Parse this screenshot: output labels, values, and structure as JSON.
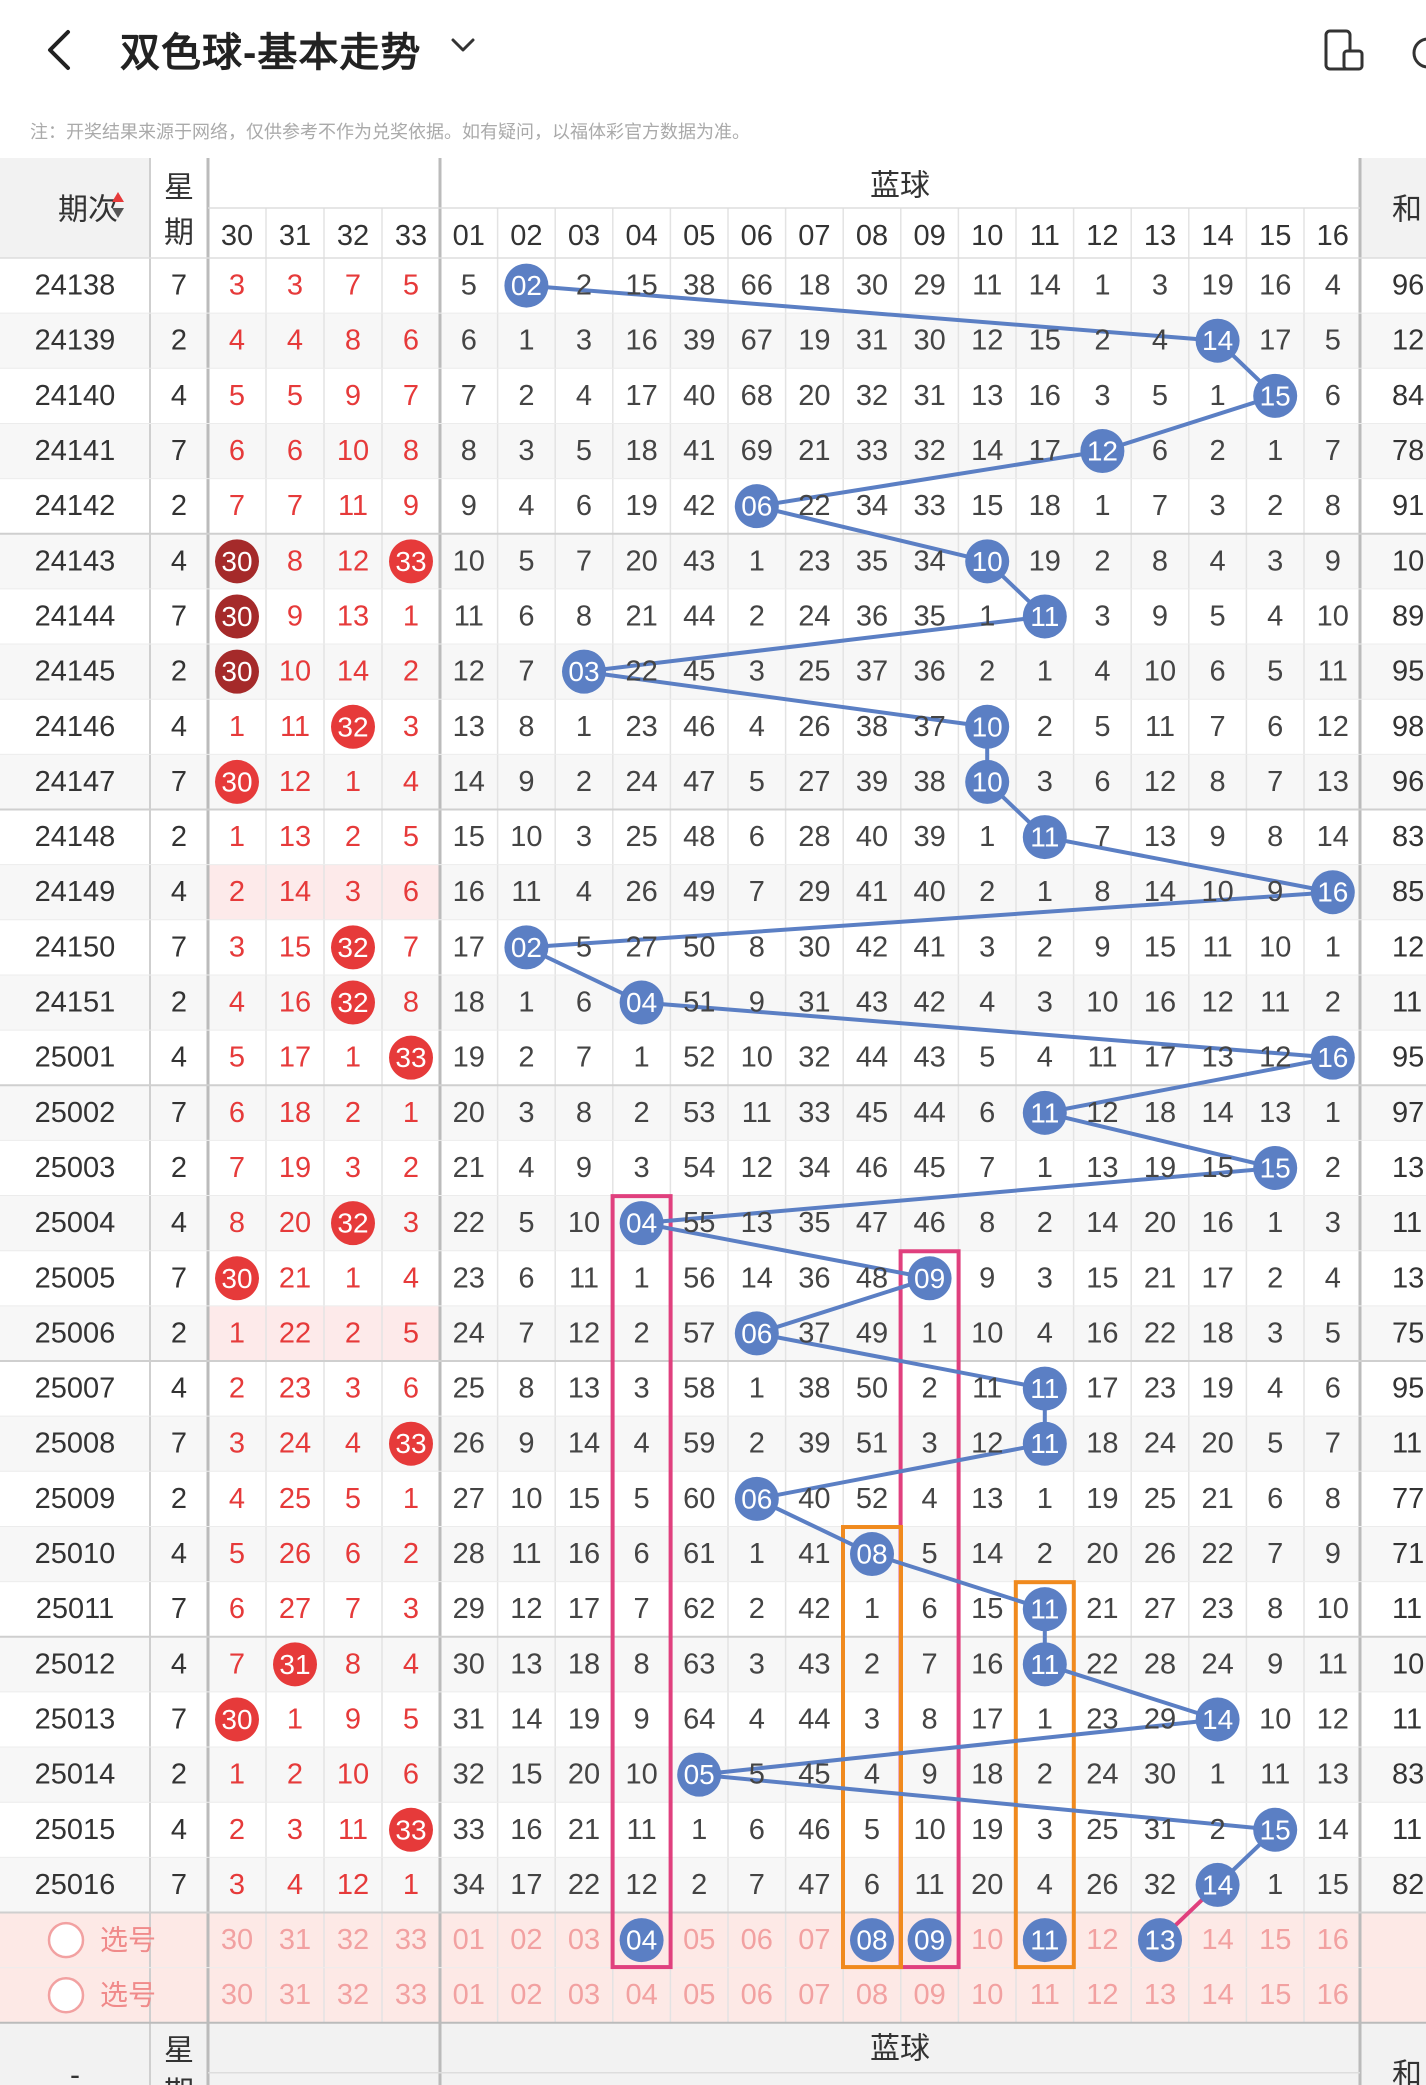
{
  "header": {
    "back_icon": "chevron-left-icon",
    "title": "双色球-基本走势",
    "dropdown_icon": "chevron-down-icon",
    "rotate_icon": "rotate-screen-icon"
  },
  "notice": "注：开奖结果来源于网络，仅供参考不作为兑奖依据。如有疑问，以福体彩官方数据为准。",
  "table": {
    "issue_header": "期次",
    "week_header": "星期",
    "blue_group_header": "蓝球",
    "sum_header_partial": "和",
    "red_cols": [
      "30",
      "31",
      "32",
      "33"
    ],
    "blue_cols": [
      "01",
      "02",
      "03",
      "04",
      "05",
      "06",
      "07",
      "08",
      "09",
      "10",
      "11",
      "12",
      "13",
      "14",
      "15",
      "16"
    ],
    "select_label": "选号",
    "footer_issue": "-",
    "colors": {
      "red": "#e63a3a",
      "dark_red": "#a52a2a",
      "blue": "#5b7fc4",
      "orange": "#f08a1e",
      "pink": "#e0407e",
      "header_bg": "#f2f2f2",
      "grid": "#dcdcdc"
    },
    "rows": [
      {
        "issue": "24138",
        "week": "7",
        "red": [
          "3",
          "3",
          "7",
          "5"
        ],
        "blue": [
          "5",
          "02",
          "2",
          "15",
          "38",
          "66",
          "18",
          "30",
          "29",
          "11",
          "14",
          "1",
          "3",
          "19",
          "16",
          "4"
        ],
        "sum": "96"
      },
      {
        "issue": "24139",
        "week": "2",
        "red": [
          "4",
          "4",
          "8",
          "6"
        ],
        "blue": [
          "6",
          "1",
          "3",
          "16",
          "39",
          "67",
          "19",
          "31",
          "30",
          "12",
          "15",
          "2",
          "4",
          "14",
          "17",
          "5"
        ],
        "sum": "12"
      },
      {
        "issue": "24140",
        "week": "4",
        "red": [
          "5",
          "5",
          "9",
          "7"
        ],
        "blue": [
          "7",
          "2",
          "4",
          "17",
          "40",
          "68",
          "20",
          "32",
          "31",
          "13",
          "16",
          "3",
          "5",
          "1",
          "15",
          "6"
        ],
        "sum": "84"
      },
      {
        "issue": "24141",
        "week": "7",
        "red": [
          "6",
          "6",
          "10",
          "8"
        ],
        "blue": [
          "8",
          "3",
          "5",
          "18",
          "41",
          "69",
          "21",
          "33",
          "32",
          "14",
          "17",
          "12",
          "6",
          "2",
          "1",
          "7"
        ],
        "sum": "78"
      },
      {
        "issue": "24142",
        "week": "2",
        "red": [
          "7",
          "7",
          "11",
          "9"
        ],
        "blue": [
          "9",
          "4",
          "6",
          "19",
          "42",
          "06",
          "22",
          "34",
          "33",
          "15",
          "18",
          "1",
          "7",
          "3",
          "2",
          "8"
        ],
        "sum": "91"
      },
      {
        "issue": "24143",
        "week": "4",
        "red": [
          "30",
          "8",
          "12",
          "33"
        ],
        "blue": [
          "10",
          "5",
          "7",
          "20",
          "43",
          "1",
          "23",
          "35",
          "34",
          "10",
          "19",
          "2",
          "8",
          "4",
          "3",
          "9"
        ],
        "sum": "10"
      },
      {
        "issue": "24144",
        "week": "7",
        "red": [
          "30",
          "9",
          "13",
          "1"
        ],
        "blue": [
          "11",
          "6",
          "8",
          "21",
          "44",
          "2",
          "24",
          "36",
          "35",
          "1",
          "11",
          "3",
          "9",
          "5",
          "4",
          "10"
        ],
        "sum": "89"
      },
      {
        "issue": "24145",
        "week": "2",
        "red": [
          "30",
          "10",
          "14",
          "2"
        ],
        "blue": [
          "12",
          "7",
          "03",
          "22",
          "45",
          "3",
          "25",
          "37",
          "36",
          "2",
          "1",
          "4",
          "10",
          "6",
          "5",
          "11"
        ],
        "sum": "95"
      },
      {
        "issue": "24146",
        "week": "4",
        "red": [
          "1",
          "11",
          "32",
          "3"
        ],
        "blue": [
          "13",
          "8",
          "1",
          "23",
          "46",
          "4",
          "26",
          "38",
          "37",
          "10",
          "2",
          "5",
          "11",
          "7",
          "6",
          "12"
        ],
        "sum": "98"
      },
      {
        "issue": "24147",
        "week": "7",
        "red": [
          "30",
          "12",
          "1",
          "4"
        ],
        "blue": [
          "14",
          "9",
          "2",
          "24",
          "47",
          "5",
          "27",
          "39",
          "38",
          "10",
          "3",
          "6",
          "12",
          "8",
          "7",
          "13"
        ],
        "sum": "96"
      },
      {
        "issue": "24148",
        "week": "2",
        "red": [
          "1",
          "13",
          "2",
          "5"
        ],
        "blue": [
          "15",
          "10",
          "3",
          "25",
          "48",
          "6",
          "28",
          "40",
          "39",
          "1",
          "11",
          "7",
          "13",
          "9",
          "8",
          "14"
        ],
        "sum": "83"
      },
      {
        "issue": "24149",
        "week": "4",
        "red": [
          "2",
          "14",
          "3",
          "6"
        ],
        "blue": [
          "16",
          "11",
          "4",
          "26",
          "49",
          "7",
          "29",
          "41",
          "40",
          "2",
          "1",
          "8",
          "14",
          "10",
          "9",
          "16"
        ],
        "sum": "85"
      },
      {
        "issue": "24150",
        "week": "7",
        "red": [
          "3",
          "15",
          "32",
          "7"
        ],
        "blue": [
          "17",
          "02",
          "5",
          "27",
          "50",
          "8",
          "30",
          "42",
          "41",
          "3",
          "2",
          "9",
          "15",
          "11",
          "10",
          "1"
        ],
        "sum": "12"
      },
      {
        "issue": "24151",
        "week": "2",
        "red": [
          "4",
          "16",
          "32",
          "8"
        ],
        "blue": [
          "18",
          "1",
          "6",
          "04",
          "51",
          "9",
          "31",
          "43",
          "42",
          "4",
          "3",
          "10",
          "16",
          "12",
          "11",
          "2"
        ],
        "sum": "11"
      },
      {
        "issue": "25001",
        "week": "4",
        "red": [
          "5",
          "17",
          "1",
          "33"
        ],
        "blue": [
          "19",
          "2",
          "7",
          "1",
          "52",
          "10",
          "32",
          "44",
          "43",
          "5",
          "4",
          "11",
          "17",
          "13",
          "12",
          "16"
        ],
        "sum": "95"
      },
      {
        "issue": "25002",
        "week": "7",
        "red": [
          "6",
          "18",
          "2",
          "1"
        ],
        "blue": [
          "20",
          "3",
          "8",
          "2",
          "53",
          "11",
          "33",
          "45",
          "44",
          "6",
          "11",
          "12",
          "18",
          "14",
          "13",
          "1"
        ],
        "sum": "97"
      },
      {
        "issue": "25003",
        "week": "2",
        "red": [
          "7",
          "19",
          "3",
          "2"
        ],
        "blue": [
          "21",
          "4",
          "9",
          "3",
          "54",
          "12",
          "34",
          "46",
          "45",
          "7",
          "1",
          "13",
          "19",
          "15",
          "15",
          "2"
        ],
        "sum": "13"
      },
      {
        "issue": "25004",
        "week": "4",
        "red": [
          "8",
          "20",
          "32",
          "3"
        ],
        "blue": [
          "22",
          "5",
          "10",
          "04",
          "55",
          "13",
          "35",
          "47",
          "46",
          "8",
          "2",
          "14",
          "20",
          "16",
          "1",
          "3"
        ],
        "sum": "11"
      },
      {
        "issue": "25005",
        "week": "7",
        "red": [
          "30",
          "21",
          "1",
          "4"
        ],
        "blue": [
          "23",
          "6",
          "11",
          "1",
          "56",
          "14",
          "36",
          "48",
          "09",
          "9",
          "3",
          "15",
          "21",
          "17",
          "2",
          "4"
        ],
        "sum": "13"
      },
      {
        "issue": "25006",
        "week": "2",
        "red": [
          "1",
          "22",
          "2",
          "5"
        ],
        "blue": [
          "24",
          "7",
          "12",
          "2",
          "57",
          "06",
          "37",
          "49",
          "1",
          "10",
          "4",
          "16",
          "22",
          "18",
          "3",
          "5"
        ],
        "sum": "75"
      },
      {
        "issue": "25007",
        "week": "4",
        "red": [
          "2",
          "23",
          "3",
          "6"
        ],
        "blue": [
          "25",
          "8",
          "13",
          "3",
          "58",
          "1",
          "38",
          "50",
          "2",
          "11",
          "11",
          "17",
          "23",
          "19",
          "4",
          "6"
        ],
        "sum": "95"
      },
      {
        "issue": "25008",
        "week": "7",
        "red": [
          "3",
          "24",
          "4",
          "33"
        ],
        "blue": [
          "26",
          "9",
          "14",
          "4",
          "59",
          "2",
          "39",
          "51",
          "3",
          "12",
          "11",
          "18",
          "24",
          "20",
          "5",
          "7"
        ],
        "sum": "11"
      },
      {
        "issue": "25009",
        "week": "2",
        "red": [
          "4",
          "25",
          "5",
          "1"
        ],
        "blue": [
          "27",
          "10",
          "15",
          "5",
          "60",
          "06",
          "40",
          "52",
          "4",
          "13",
          "1",
          "19",
          "25",
          "21",
          "6",
          "8"
        ],
        "sum": "77"
      },
      {
        "issue": "25010",
        "week": "4",
        "red": [
          "5",
          "26",
          "6",
          "2"
        ],
        "blue": [
          "28",
          "11",
          "16",
          "6",
          "61",
          "1",
          "41",
          "08",
          "5",
          "14",
          "2",
          "20",
          "26",
          "22",
          "7",
          "9"
        ],
        "sum": "71"
      },
      {
        "issue": "25011",
        "week": "7",
        "red": [
          "6",
          "27",
          "7",
          "3"
        ],
        "blue": [
          "29",
          "12",
          "17",
          "7",
          "62",
          "2",
          "42",
          "1",
          "6",
          "15",
          "11",
          "21",
          "27",
          "23",
          "8",
          "10"
        ],
        "sum": "11"
      },
      {
        "issue": "25012",
        "week": "4",
        "red": [
          "7",
          "31",
          "8",
          "4"
        ],
        "blue": [
          "30",
          "13",
          "18",
          "8",
          "63",
          "3",
          "43",
          "2",
          "7",
          "16",
          "11",
          "22",
          "28",
          "24",
          "9",
          "11"
        ],
        "sum": "10"
      },
      {
        "issue": "25013",
        "week": "7",
        "red": [
          "30",
          "1",
          "9",
          "5"
        ],
        "blue": [
          "31",
          "14",
          "19",
          "9",
          "64",
          "4",
          "44",
          "3",
          "8",
          "17",
          "1",
          "23",
          "29",
          "14",
          "10",
          "12"
        ],
        "sum": "11"
      },
      {
        "issue": "25014",
        "week": "2",
        "red": [
          "1",
          "2",
          "10",
          "6"
        ],
        "blue": [
          "32",
          "15",
          "20",
          "10",
          "05",
          "5",
          "45",
          "4",
          "9",
          "18",
          "2",
          "24",
          "30",
          "1",
          "11",
          "13"
        ],
        "sum": "83"
      },
      {
        "issue": "25015",
        "week": "4",
        "red": [
          "2",
          "3",
          "11",
          "33"
        ],
        "blue": [
          "33",
          "16",
          "21",
          "11",
          "1",
          "6",
          "46",
          "5",
          "10",
          "19",
          "3",
          "25",
          "31",
          "2",
          "15",
          "14"
        ],
        "sum": "11"
      },
      {
        "issue": "25016",
        "week": "7",
        "red": [
          "3",
          "4",
          "12",
          "1"
        ],
        "blue": [
          "34",
          "17",
          "22",
          "12",
          "2",
          "7",
          "47",
          "6",
          "11",
          "20",
          "4",
          "26",
          "32",
          "14",
          "1",
          "15"
        ],
        "sum": "82"
      }
    ]
  }
}
